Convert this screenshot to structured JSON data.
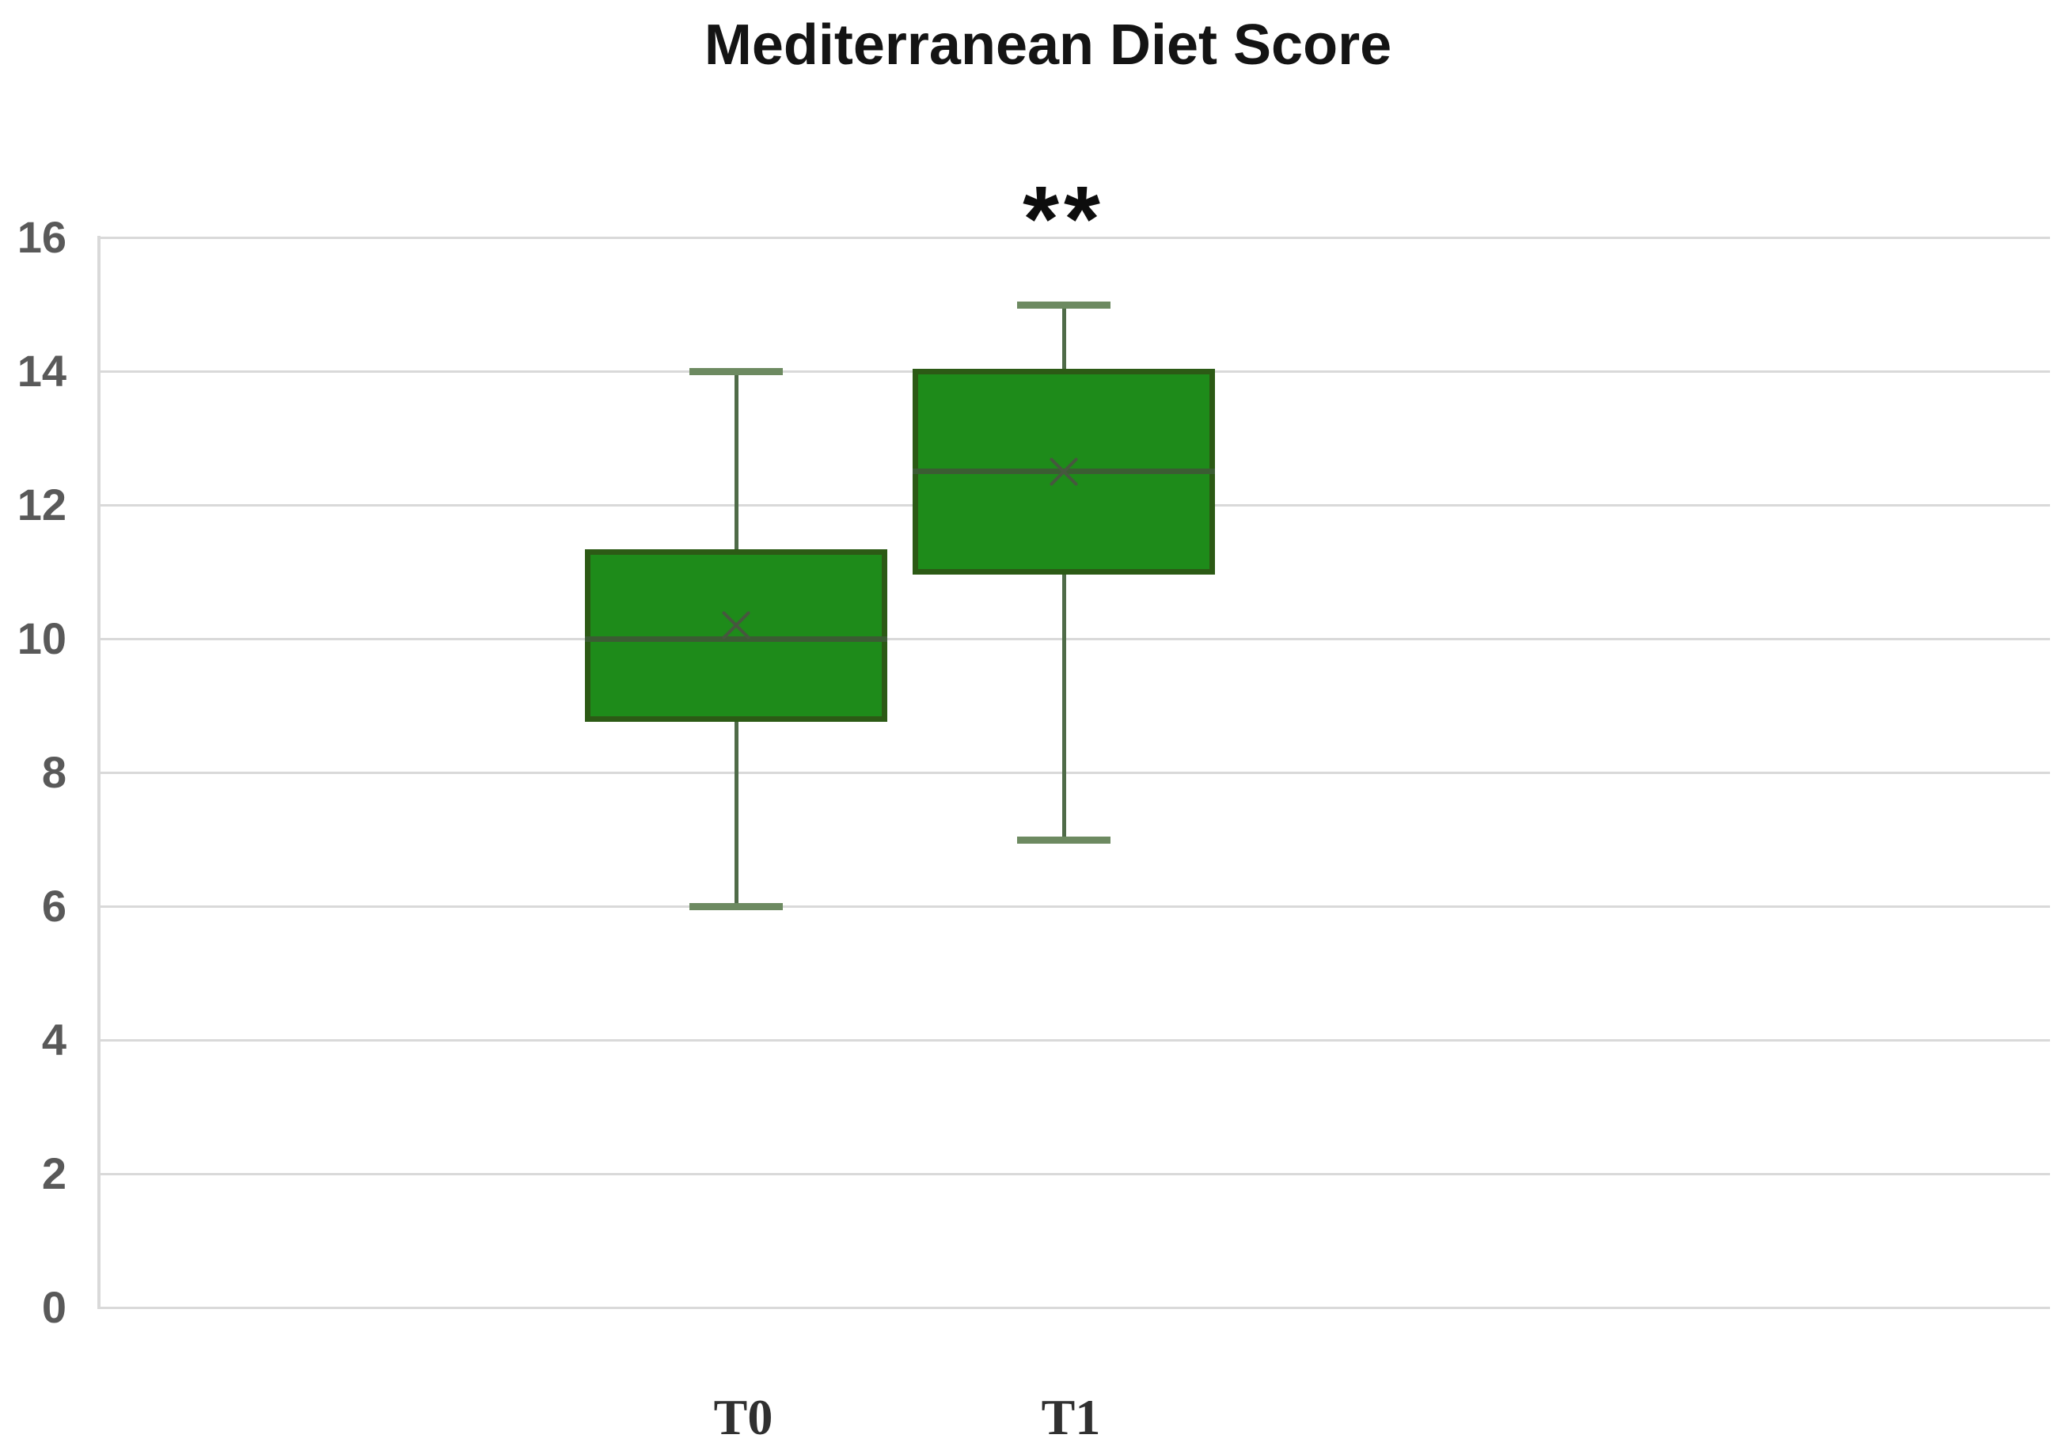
{
  "chart_data": {
    "type": "box",
    "title": "Mediterranean Diet Score",
    "categories": [
      "T0",
      "T1"
    ],
    "series": [
      {
        "name": "T0",
        "min": 6,
        "q1": 8.8,
        "median": 10,
        "q3": 11.3,
        "max": 14,
        "mean": 10.2
      },
      {
        "name": "T1",
        "min": 7,
        "q1": 11,
        "median": 12.5,
        "q3": 14,
        "max": 15,
        "mean": 12.5
      }
    ],
    "annotations": [
      {
        "text": "**",
        "category": "T1",
        "meaning": "significance-marker"
      }
    ],
    "xlabel": "",
    "ylabel": "",
    "ylim": [
      0,
      16
    ],
    "yticks": [
      0,
      2,
      4,
      6,
      8,
      10,
      12,
      14,
      16
    ],
    "grid": "horizontal",
    "legend": "none",
    "colors": {
      "box_fill": "#1e8b1a",
      "box_border": "#2c5a15",
      "median_line": "#3b5c33",
      "whisker_line": "#4f6b48",
      "whisker_cap": "#6d8a61",
      "mean_marker": "#47573f",
      "gridline": "#d9d9d9",
      "axis_line": "#d9d9d9",
      "tick_label": "#595959",
      "x_label": "#303030",
      "title": "#141414",
      "annotation": "#0d0d0d",
      "background": "#ffffff"
    }
  }
}
